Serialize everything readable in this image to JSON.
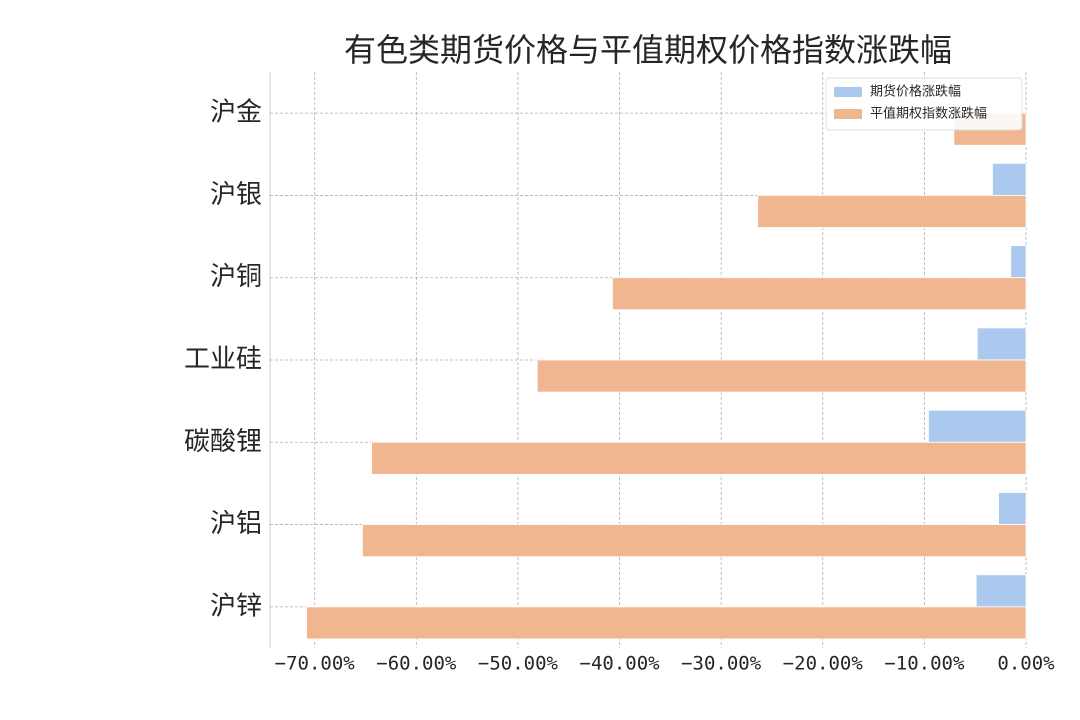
{
  "chart_data": {
    "type": "hbar",
    "title": "有色类期货价格与平值期权价格指数涨跌幅",
    "categories": [
      "沪金",
      "沪银",
      "沪铜",
      "工业硅",
      "碳酸锂",
      "沪铝",
      "沪锌"
    ],
    "series": [
      {
        "name": "期货价格涨跌幅",
        "color": "#abc9ee",
        "values": [
          0,
          -3.3,
          -1.5,
          -4.8,
          -9.6,
          -2.7,
          -4.9
        ]
      },
      {
        "name": "平值期权指数涨跌幅",
        "color": "#f0b68f",
        "values": [
          -7.1,
          -26.4,
          -40.7,
          -48.1,
          -64.4,
          -65.3,
          -70.8
        ]
      }
    ],
    "xlim": [
      -74.4,
      0
    ],
    "xticks": [
      {
        "value": -70,
        "label": "−70.00%"
      },
      {
        "value": -60,
        "label": "−60.00%"
      },
      {
        "value": -50,
        "label": "−50.00%"
      },
      {
        "value": -40,
        "label": "−40.00%"
      },
      {
        "value": -30,
        "label": "−30.00%"
      },
      {
        "value": -20,
        "label": "−20.00%"
      },
      {
        "value": -10,
        "label": "−10.00%"
      },
      {
        "value": 0,
        "label": "0.00%"
      }
    ],
    "grid": true,
    "legend": "upper right"
  }
}
